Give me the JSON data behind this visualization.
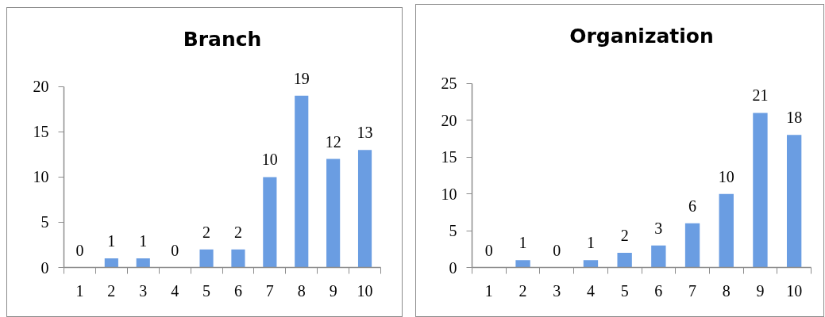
{
  "chart_data": [
    {
      "type": "bar",
      "title": "Branch",
      "categories": [
        "1",
        "2",
        "3",
        "4",
        "5",
        "6",
        "7",
        "8",
        "9",
        "10"
      ],
      "values": [
        0,
        1,
        1,
        0,
        2,
        2,
        10,
        19,
        12,
        13
      ],
      "color": "#6a9de2",
      "ylim": [
        0,
        20
      ],
      "yticks": [
        0,
        5,
        10,
        15,
        20
      ],
      "data_labels": true,
      "grid": false
    },
    {
      "type": "bar",
      "title": "Organization",
      "categories": [
        "1",
        "2",
        "3",
        "4",
        "5",
        "6",
        "7",
        "8",
        "9",
        "10"
      ],
      "values": [
        0,
        1,
        0,
        1,
        2,
        3,
        6,
        10,
        21,
        18
      ],
      "color": "#6a9de2",
      "ylim": [
        0,
        25
      ],
      "yticks": [
        0,
        5,
        10,
        15,
        20,
        25
      ],
      "data_labels": true,
      "grid": false
    }
  ]
}
